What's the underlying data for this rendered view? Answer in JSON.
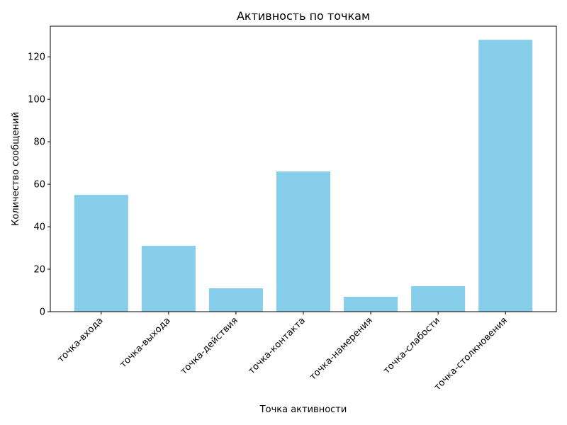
{
  "chart_data": {
    "type": "bar",
    "title": "Активность по точкам",
    "xlabel": "Точка активности",
    "ylabel": "Количество сообщений",
    "categories": [
      "точка-входа",
      "точка-выхода",
      "точка-действия",
      "точка-контакта",
      "точка-намерения",
      "точка-слабости",
      "точка-столкновения"
    ],
    "values": [
      55,
      31,
      11,
      66,
      7,
      12,
      128
    ],
    "ylim": [
      0,
      134.4
    ],
    "yticks": [
      0,
      20,
      40,
      60,
      80,
      100,
      120
    ],
    "bar_color": "#87ceeb",
    "grid": false,
    "legend": "none"
  }
}
